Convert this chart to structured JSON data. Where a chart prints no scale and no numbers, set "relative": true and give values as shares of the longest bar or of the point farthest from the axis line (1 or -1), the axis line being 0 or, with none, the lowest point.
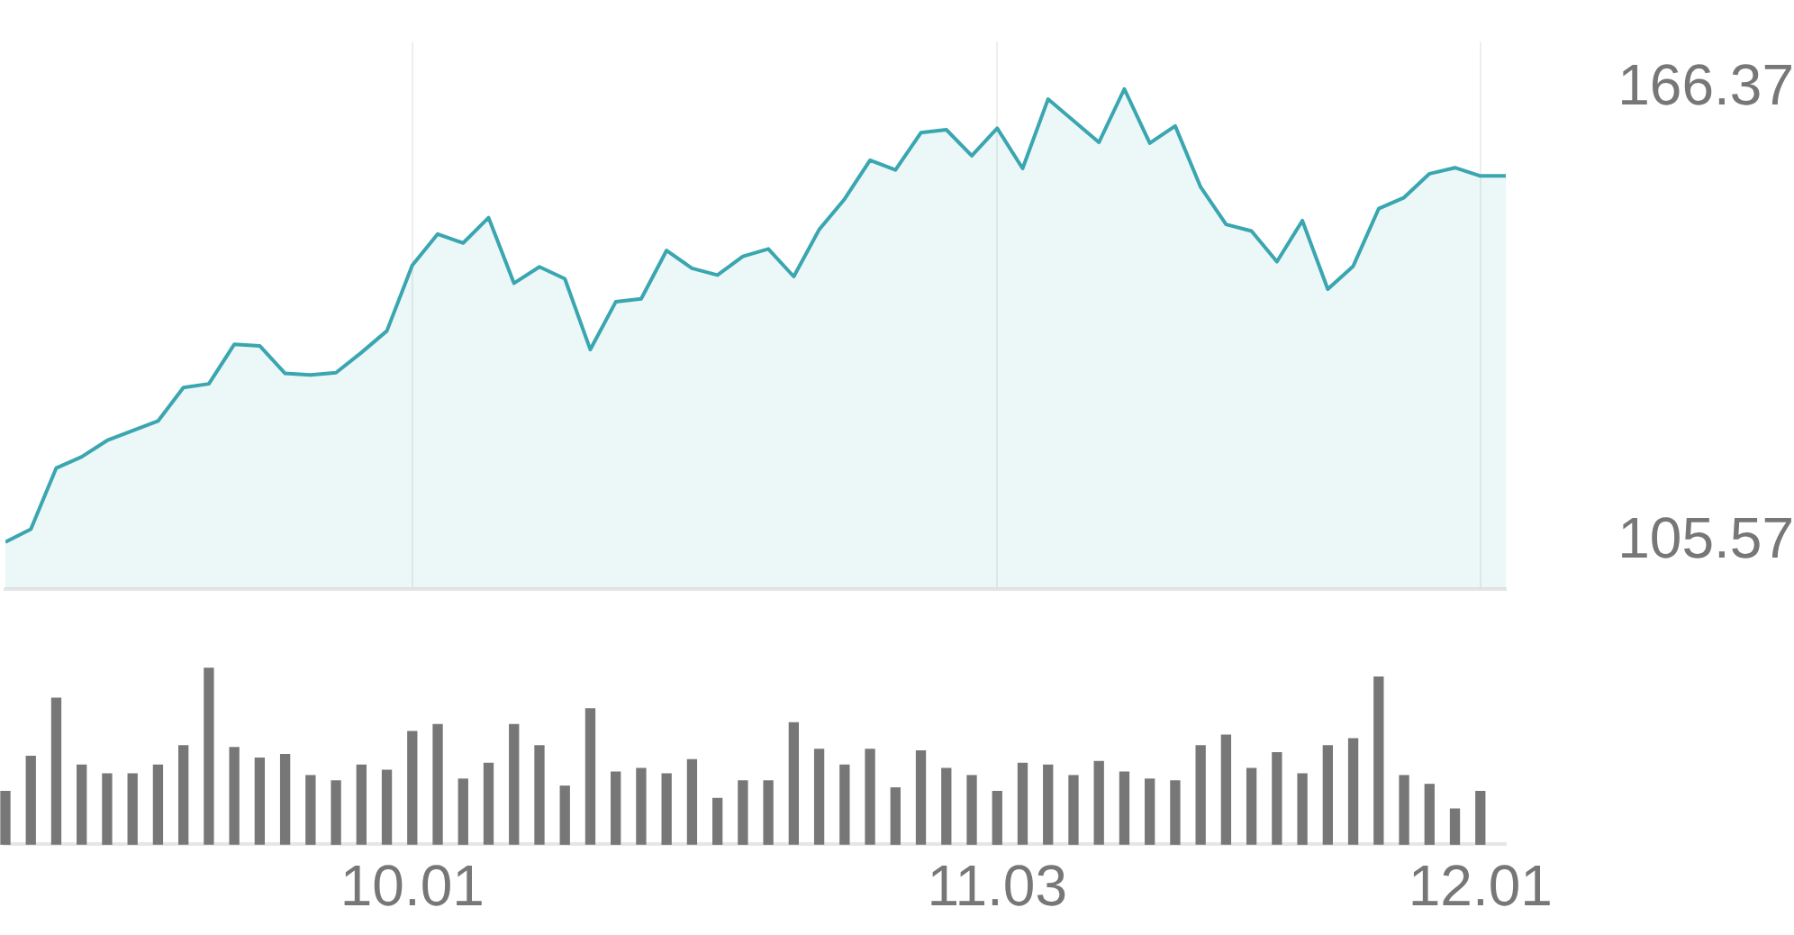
{
  "chart_data": [
    {
      "type": "area",
      "categories": [
        null,
        null,
        null,
        null,
        null,
        null,
        null,
        null,
        null,
        null,
        null,
        null,
        null,
        null,
        null,
        null,
        "10.01",
        null,
        null,
        null,
        null,
        null,
        null,
        null,
        null,
        null,
        null,
        null,
        null,
        null,
        null,
        null,
        null,
        null,
        null,
        null,
        null,
        null,
        null,
        "11.03",
        null,
        null,
        null,
        null,
        null,
        null,
        null,
        null,
        null,
        null,
        null,
        null,
        null,
        null,
        null,
        null,
        null,
        null,
        "12.01",
        null
      ],
      "series": [
        {
          "color": "#3aa6b0",
          "values": [
            105.57,
            107.3,
            115.5,
            117.0,
            119.2,
            120.5,
            121.8,
            126.3,
            126.8,
            132.1,
            131.9,
            128.2,
            128.0,
            128.3,
            131.0,
            133.9,
            142.7,
            146.9,
            145.7,
            149.1,
            140.3,
            142.5,
            140.9,
            131.4,
            137.8,
            138.2,
            144.7,
            142.3,
            141.4,
            143.9,
            144.9,
            141.2,
            147.5,
            151.6,
            156.8,
            155.5,
            160.5,
            160.9,
            157.4,
            161.1,
            155.7,
            165.0,
            162.1,
            159.2,
            166.37,
            159.1,
            161.4,
            153.2,
            148.2,
            147.3,
            143.2,
            148.7,
            139.5,
            142.6,
            150.3,
            151.8,
            155.0,
            155.8,
            154.7,
            154.7
          ]
        }
      ],
      "ylim": [
        99.3,
        172.7
      ],
      "yticks": [
        105.57,
        166.37
      ],
      "grid": "x",
      "tick_labels": "y",
      "marker": "none"
    },
    {
      "type": "bar",
      "relative": true,
      "categories": [
        null,
        null,
        null,
        null,
        null,
        null,
        null,
        null,
        null,
        null,
        null,
        null,
        null,
        null,
        null,
        null,
        "10.01",
        null,
        null,
        null,
        null,
        null,
        null,
        null,
        null,
        null,
        null,
        null,
        null,
        null,
        null,
        null,
        null,
        null,
        null,
        null,
        null,
        null,
        null,
        "11.03",
        null,
        null,
        null,
        null,
        null,
        null,
        null,
        null,
        null,
        null,
        null,
        null,
        null,
        null,
        null,
        null,
        null,
        null,
        "12.01",
        null
      ],
      "series": [
        {
          "color": "#777777",
          "values": [
            0.3,
            0.5,
            0.83,
            0.45,
            0.4,
            0.4,
            0.45,
            0.56,
            1,
            0.55,
            0.49,
            0.51,
            0.39,
            0.36,
            0.45,
            0.42,
            0.64,
            0.68,
            0.37,
            0.46,
            0.68,
            0.56,
            0.33,
            0.77,
            0.41,
            0.43,
            0.4,
            0.48,
            0.26,
            0.36,
            0.36,
            0.69,
            0.54,
            0.45,
            0.54,
            0.32,
            0.53,
            0.43,
            0.39,
            0.3,
            0.46,
            0.45,
            0.39,
            0.47,
            0.41,
            0.37,
            0.36,
            0.56,
            0.62,
            0.43,
            0.52,
            0.4,
            0.56,
            0.6,
            0.95,
            0.39,
            0.34,
            0.2,
            0.3,
            null
          ]
        }
      ],
      "tick_labels": "x"
    }
  ]
}
